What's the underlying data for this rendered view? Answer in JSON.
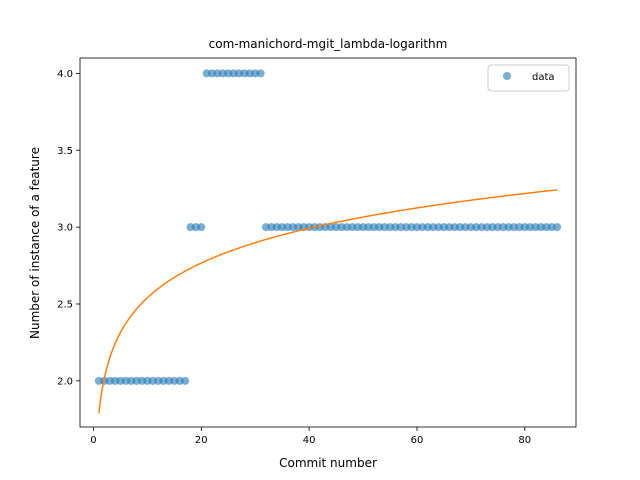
{
  "chart_data": {
    "type": "scatter",
    "title": "com-manichord-mgit_lambda-logarithm",
    "xlabel": "Commit number",
    "ylabel": "Number of instance of a feature",
    "xlim": [
      -2.5,
      89.5
    ],
    "ylim": [
      1.7,
      4.1
    ],
    "xticks": [
      0,
      20,
      40,
      60,
      80
    ],
    "yticks": [
      2.0,
      2.5,
      3.0,
      3.5,
      4.0
    ],
    "xtick_labels": [
      "0",
      "20",
      "40",
      "60",
      "80"
    ],
    "ytick_labels": [
      "2.0",
      "2.5",
      "3.0",
      "3.5",
      "4.0"
    ],
    "legend": {
      "position": "top-right",
      "entries": [
        "data"
      ]
    },
    "grid": false,
    "series": [
      {
        "name": "data",
        "kind": "scatter",
        "color": "#1f77b4",
        "x": [
          1,
          2,
          3,
          4,
          5,
          6,
          7,
          8,
          9,
          10,
          11,
          12,
          13,
          14,
          15,
          16,
          17,
          18,
          19,
          20,
          21,
          22,
          23,
          24,
          25,
          26,
          27,
          28,
          29,
          30,
          31,
          32,
          33,
          34,
          35,
          36,
          37,
          38,
          39,
          40,
          41,
          42,
          43,
          44,
          45,
          46,
          47,
          48,
          49,
          50,
          51,
          52,
          53,
          54,
          55,
          56,
          57,
          58,
          59,
          60,
          61,
          62,
          63,
          64,
          65,
          66,
          67,
          68,
          69,
          70,
          71,
          72,
          73,
          74,
          75,
          76,
          77,
          78,
          79,
          80,
          81,
          82,
          83,
          84,
          85,
          86
        ],
        "y": [
          2,
          2,
          2,
          2,
          2,
          2,
          2,
          2,
          2,
          2,
          2,
          2,
          2,
          2,
          2,
          2,
          2,
          3,
          3,
          3,
          4,
          4,
          4,
          4,
          4,
          4,
          4,
          4,
          4,
          4,
          4,
          3,
          3,
          3,
          3,
          3,
          3,
          3,
          3,
          3,
          3,
          3,
          3,
          3,
          3,
          3,
          3,
          3,
          3,
          3,
          3,
          3,
          3,
          3,
          3,
          3,
          3,
          3,
          3,
          3,
          3,
          3,
          3,
          3,
          3,
          3,
          3,
          3,
          3,
          3,
          3,
          3,
          3,
          3,
          3,
          3,
          3,
          3,
          3,
          3,
          3,
          3,
          3,
          3,
          3,
          3
        ]
      },
      {
        "kind": "line",
        "color": "#ff7f0e",
        "function": "logarithm",
        "coef_a": 1.79,
        "coef_b": 0.326,
        "x_range": [
          1,
          86
        ]
      }
    ]
  }
}
